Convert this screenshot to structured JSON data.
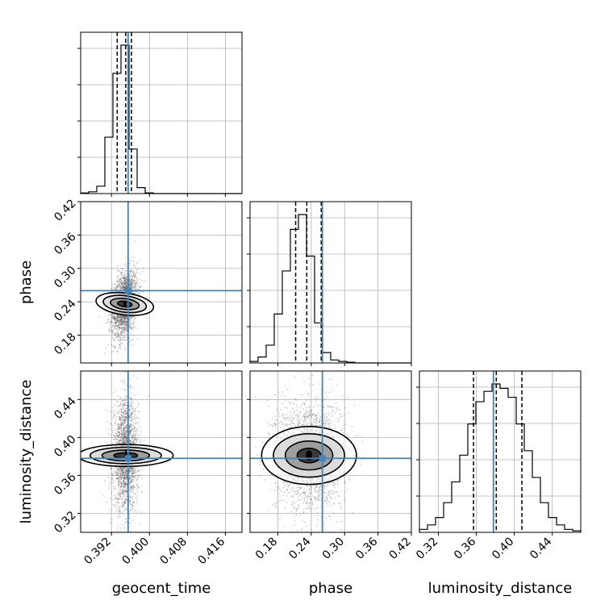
{
  "chart_data": {
    "type": "corner",
    "parameters": [
      "geocent_time",
      "phase",
      "luminosity_distance"
    ],
    "truth": {
      "geocent_time": 0.3955,
      "phase": 0.26,
      "luminosity_distance": 0.378
    },
    "truth_color": "#4682b4",
    "grid": true,
    "axes": {
      "geocent_time": {
        "range": [
          0.3855,
          0.4195
        ],
        "ticks": [
          "0.392",
          "0.400",
          "0.408",
          "0.416"
        ]
      },
      "phase": {
        "range": [
          0.13,
          0.42
        ],
        "ticks": [
          "0.18",
          "0.24",
          "0.30",
          "0.36",
          "0.42"
        ]
      },
      "luminosity_distance": {
        "range": [
          0.3,
          0.47
        ],
        "ticks": [
          "0.32",
          "0.36",
          "0.40",
          "0.44"
        ]
      }
    },
    "marginals": {
      "geocent_time": {
        "edges": [
          0.3855,
          0.3872,
          0.3889,
          0.3906,
          0.3923,
          0.394,
          0.3957,
          0.3974,
          0.3991,
          0.4008,
          0.4025,
          0.4042,
          0.4059,
          0.4076,
          0.4093,
          0.411,
          0.4127,
          0.4144,
          0.4161,
          0.4178,
          0.4195
        ],
        "counts": [
          0.004,
          0.012,
          0.05,
          0.38,
          0.81,
          1.0,
          0.3,
          0.04,
          0.005,
          0.0,
          0.0,
          0.0,
          0.0,
          0.0,
          0.0,
          0.0,
          0.0,
          0.0,
          0.0,
          0.0
        ],
        "quantiles": [
          0.3932,
          0.395,
          0.3962
        ]
      },
      "phase": {
        "edges": [
          0.13,
          0.1445,
          0.159,
          0.1735,
          0.188,
          0.2025,
          0.217,
          0.2315,
          0.246,
          0.2605,
          0.275,
          0.2895,
          0.304,
          0.3185,
          0.333,
          0.3475,
          0.362,
          0.3765,
          0.391,
          0.4055,
          0.42
        ],
        "counts": [
          0.01,
          0.04,
          0.12,
          0.33,
          0.62,
          0.9,
          1.0,
          0.72,
          0.27,
          0.07,
          0.02,
          0.01,
          0.005,
          0.0,
          0.0,
          0.0,
          0.0,
          0.0,
          0.0,
          0.0
        ],
        "quantiles": [
          0.212,
          0.232,
          0.258
        ]
      },
      "luminosity_distance": {
        "edges": [
          0.3,
          0.3085,
          0.317,
          0.3255,
          0.334,
          0.3425,
          0.351,
          0.3595,
          0.368,
          0.3765,
          0.385,
          0.3935,
          0.402,
          0.4105,
          0.419,
          0.4275,
          0.436,
          0.4445,
          0.453,
          0.4615,
          0.47
        ],
        "counts": [
          0.02,
          0.05,
          0.1,
          0.2,
          0.34,
          0.52,
          0.73,
          0.88,
          0.95,
          1.0,
          0.97,
          0.91,
          0.73,
          0.55,
          0.37,
          0.2,
          0.1,
          0.05,
          0.02,
          0.01
        ],
        "quantiles": [
          0.357,
          0.381,
          0.408
        ]
      }
    },
    "joints": [
      {
        "x": "geocent_time",
        "y": "phase",
        "mean": [
          0.3948,
          0.236
        ],
        "sd": [
          0.00115,
          0.026
        ],
        "corr": 0.3
      },
      {
        "x": "geocent_time",
        "y": "luminosity_distance",
        "mean": [
          0.395,
          0.381
        ],
        "sd": [
          0.00115,
          0.025
        ],
        "corr": 0.0
      },
      {
        "x": "phase",
        "y": "luminosity_distance",
        "mean": [
          0.236,
          0.381
        ],
        "sd": [
          0.026,
          0.025
        ],
        "corr": 0.0
      }
    ]
  }
}
